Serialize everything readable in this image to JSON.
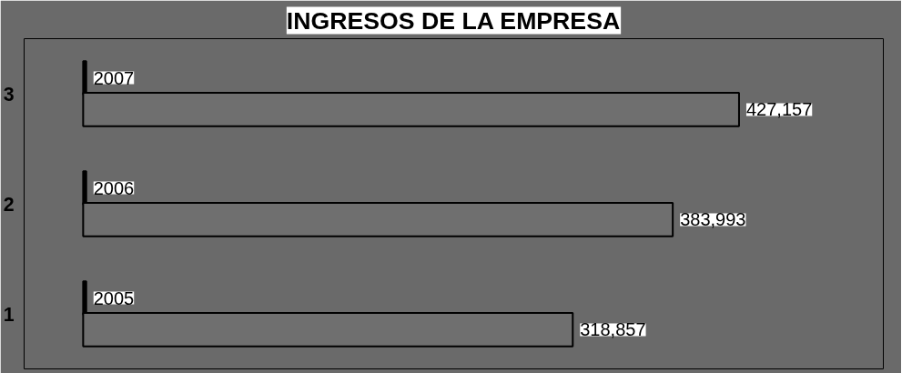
{
  "chart_data": {
    "type": "bar",
    "orientation": "horizontal",
    "title": "INGRESOS DE LA EMPRESA",
    "categories": [
      "3",
      "2",
      "1"
    ],
    "series": [
      {
        "color": "#000000",
        "values": [
          2007,
          2006,
          2005
        ],
        "value_labels": [
          "2007",
          "2006",
          "2005"
        ]
      },
      {
        "color": "#6f6f6f",
        "values": [
          427157,
          383993,
          318857
        ],
        "value_labels": [
          "427,157",
          "383,993",
          "318,857"
        ]
      }
    ],
    "grid": false
  }
}
